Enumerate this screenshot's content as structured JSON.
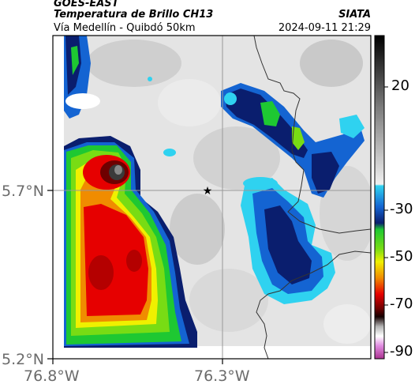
{
  "header": {
    "satellite": "GOES-EAST",
    "product": "Temperatura de Brillo CH13",
    "region": "Vía Medellín - Quibdó 50km",
    "agency": "SIATA",
    "datetime": "2024-09-11 21:29"
  },
  "axes": {
    "x_ticks": [
      "76.8°W",
      "76.3°W"
    ],
    "y_ticks": [
      "5.7°N",
      "5.2°N"
    ]
  },
  "colorbar": {
    "ticks": [
      "20",
      "-30",
      "-50",
      "-70",
      "-90"
    ],
    "colors": {
      "warm_gray": "#e6e6e6",
      "blue_dark": "#0a1e6e",
      "blue": "#1464d2",
      "cyan": "#2fd2f0",
      "green": "#1ec832",
      "yellow": "#f0f000",
      "orange": "#f08c00",
      "red": "#e60000",
      "black": "#140000",
      "magenta": "#c8329b"
    }
  },
  "map": {
    "marker": "star-marker",
    "features": [
      "cloud-top-temperature-field",
      "department-borders",
      "graticule"
    ]
  }
}
